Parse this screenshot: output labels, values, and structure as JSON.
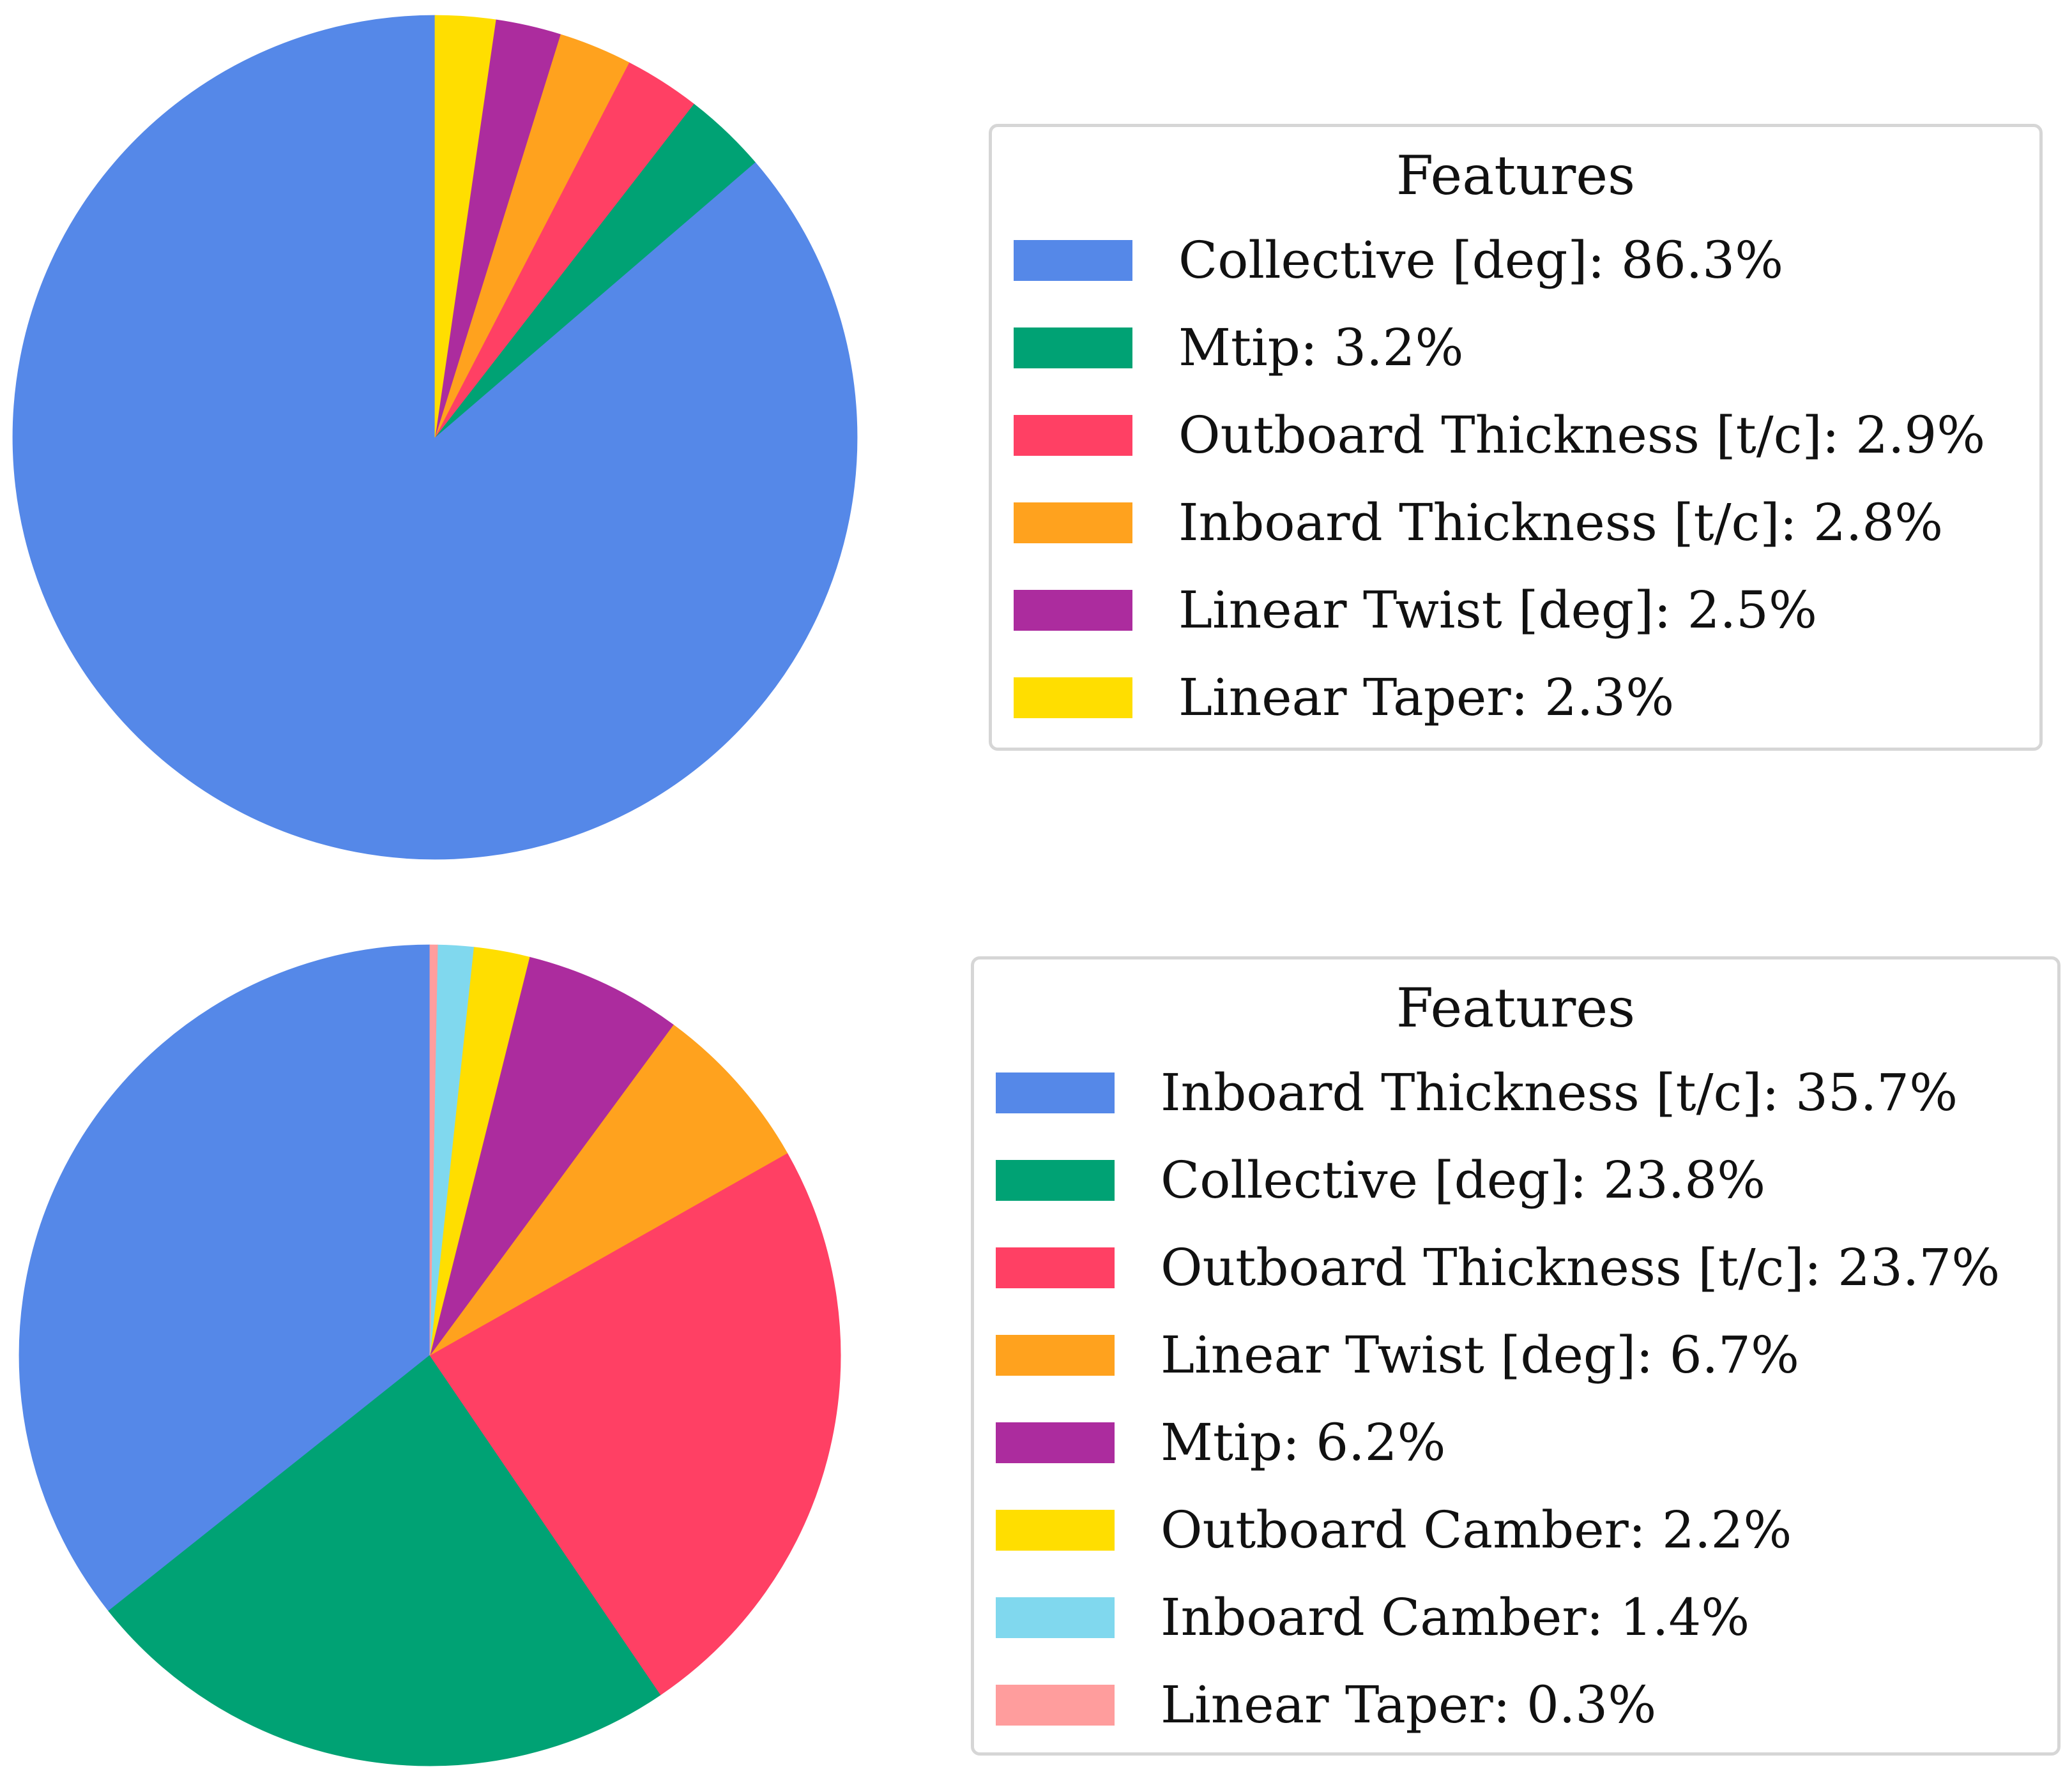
{
  "chart_data": [
    {
      "type": "pie",
      "legend_title": "Features",
      "legend_placement": "right",
      "slices": [
        {
          "label": "Collective [deg]: 86.3%",
          "value": 86.3,
          "color": "#5588e8"
        },
        {
          "label": "Mtip: 3.2%",
          "value": 3.2,
          "color": "#00a274"
        },
        {
          "label": "Outboard Thickness [t/c]: 2.9%",
          "value": 2.9,
          "color": "#ff4064"
        },
        {
          "label": "Inboard Thickness [t/c]: 2.8%",
          "value": 2.8,
          "color": "#ffa21e"
        },
        {
          "label": "Linear Twist [deg]: 2.5%",
          "value": 2.5,
          "color": "#ac2c9e"
        },
        {
          "label": "Linear Taper: 2.3%",
          "value": 2.3,
          "color": "#ffde00"
        }
      ]
    },
    {
      "type": "pie",
      "legend_title": "Features",
      "legend_placement": "right",
      "slices": [
        {
          "label": "Inboard Thickness [t/c]: 35.7%",
          "value": 35.7,
          "color": "#5588e8"
        },
        {
          "label": "Collective [deg]: 23.8%",
          "value": 23.8,
          "color": "#00a274"
        },
        {
          "label": "Outboard Thickness [t/c]: 23.7%",
          "value": 23.7,
          "color": "#ff4064"
        },
        {
          "label": "Linear Twist [deg]: 6.7%",
          "value": 6.7,
          "color": "#ffa21e"
        },
        {
          "label": "Mtip: 6.2%",
          "value": 6.2,
          "color": "#ac2c9e"
        },
        {
          "label": "Outboard Camber: 2.2%",
          "value": 2.2,
          "color": "#ffde00"
        },
        {
          "label": "Inboard Camber: 1.4%",
          "value": 1.4,
          "color": "#80d8ee"
        },
        {
          "label": "Linear Taper: 0.3%",
          "value": 0.3,
          "color": "#ff9d9d"
        }
      ]
    }
  ]
}
